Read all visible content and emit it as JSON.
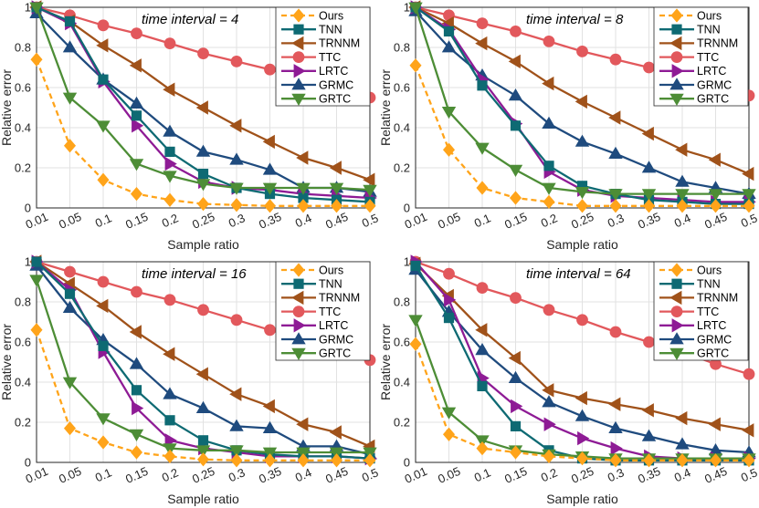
{
  "figure": {
    "xlabel": "Sample ratio",
    "ylabel": "Relative error",
    "categories": [
      "0.01",
      "0.05",
      "0.1",
      "0.15",
      "0.2",
      "0.25",
      "0.3",
      "0.35",
      "0.4",
      "0.45",
      "0.5"
    ],
    "yticks": [
      "0",
      "0.2",
      "0.4",
      "0.6",
      "0.8",
      "1"
    ],
    "legend_entries": [
      "Ours",
      "TNN",
      "TRNNM",
      "TTC",
      "LRTC",
      "GRMC",
      "GRTC"
    ]
  },
  "styles": {
    "Ours": {
      "color": "#FFA41A",
      "marker": "diamond",
      "dash": true
    },
    "TNN": {
      "color": "#0E6A73",
      "marker": "square",
      "dash": false
    },
    "TRNNM": {
      "color": "#A0521A",
      "marker": "tri-left",
      "dash": false
    },
    "TTC": {
      "color": "#E2585C",
      "marker": "circle",
      "dash": false
    },
    "LRTC": {
      "color": "#8E1B95",
      "marker": "tri-right",
      "dash": false
    },
    "GRMC": {
      "color": "#1F4B7E",
      "marker": "tri-up",
      "dash": false
    },
    "GRTC": {
      "color": "#4D8D36",
      "marker": "tri-down",
      "dash": false
    }
  },
  "chart_data": [
    {
      "type": "line",
      "title": "time interval = 4",
      "xlabel": "Sample ratio",
      "ylabel": "Relative error",
      "categories": [
        "0.01",
        "0.05",
        "0.1",
        "0.15",
        "0.2",
        "0.25",
        "0.3",
        "0.35",
        "0.4",
        "0.45",
        "0.5"
      ],
      "ylim": [
        0,
        1
      ],
      "series": [
        {
          "name": "Ours",
          "values": [
            0.74,
            0.31,
            0.14,
            0.07,
            0.04,
            0.02,
            0.015,
            0.01,
            0.01,
            0.01,
            0.01
          ]
        },
        {
          "name": "TNN",
          "values": [
            1.0,
            0.93,
            0.64,
            0.46,
            0.28,
            0.17,
            0.1,
            0.07,
            0.05,
            0.04,
            0.03
          ]
        },
        {
          "name": "TRNNM",
          "values": [
            1.0,
            0.93,
            0.81,
            0.71,
            0.59,
            0.5,
            0.41,
            0.33,
            0.25,
            0.2,
            0.14
          ]
        },
        {
          "name": "TTC",
          "values": [
            1.0,
            0.96,
            0.91,
            0.87,
            0.82,
            0.77,
            0.73,
            0.69,
            0.64,
            0.59,
            0.55
          ]
        },
        {
          "name": "LRTC",
          "values": [
            1.0,
            0.92,
            0.63,
            0.41,
            0.22,
            0.13,
            0.1,
            0.09,
            0.07,
            0.06,
            0.05
          ]
        },
        {
          "name": "GRMC",
          "values": [
            0.97,
            0.8,
            0.64,
            0.52,
            0.38,
            0.28,
            0.24,
            0.19,
            0.1,
            0.1,
            0.08
          ]
        },
        {
          "name": "GRTC",
          "values": [
            1.0,
            0.55,
            0.41,
            0.22,
            0.16,
            0.12,
            0.1,
            0.1,
            0.1,
            0.1,
            0.09
          ]
        }
      ]
    },
    {
      "type": "line",
      "title": "time interval = 8",
      "xlabel": "Sample ratio",
      "ylabel": "Relative error",
      "categories": [
        "0.01",
        "0.05",
        "0.1",
        "0.15",
        "0.2",
        "0.25",
        "0.3",
        "0.35",
        "0.4",
        "0.45",
        "0.5"
      ],
      "ylim": [
        0,
        1
      ],
      "series": [
        {
          "name": "Ours",
          "values": [
            0.71,
            0.29,
            0.1,
            0.05,
            0.03,
            0.01,
            0.01,
            0.01,
            0.01,
            0.01,
            0.01
          ]
        },
        {
          "name": "TNN",
          "values": [
            1.0,
            0.88,
            0.61,
            0.41,
            0.21,
            0.11,
            0.07,
            0.04,
            0.03,
            0.02,
            0.02
          ]
        },
        {
          "name": "TRNNM",
          "values": [
            1.0,
            0.92,
            0.82,
            0.73,
            0.62,
            0.53,
            0.45,
            0.37,
            0.29,
            0.24,
            0.17
          ]
        },
        {
          "name": "TTC",
          "values": [
            1.0,
            0.96,
            0.92,
            0.88,
            0.83,
            0.78,
            0.74,
            0.7,
            0.66,
            0.61,
            0.56
          ]
        },
        {
          "name": "LRTC",
          "values": [
            1.0,
            0.89,
            0.64,
            0.42,
            0.18,
            0.09,
            0.06,
            0.05,
            0.04,
            0.03,
            0.03
          ]
        },
        {
          "name": "GRMC",
          "values": [
            0.98,
            0.8,
            0.66,
            0.56,
            0.42,
            0.33,
            0.27,
            0.2,
            0.13,
            0.1,
            0.07
          ]
        },
        {
          "name": "GRTC",
          "values": [
            1.0,
            0.48,
            0.3,
            0.19,
            0.1,
            0.08,
            0.07,
            0.07,
            0.07,
            0.07,
            0.07
          ]
        }
      ]
    },
    {
      "type": "line",
      "title": "time interval = 16",
      "xlabel": "Sample ratio",
      "ylabel": "Relative error",
      "categories": [
        "0.01",
        "0.05",
        "0.1",
        "0.15",
        "0.2",
        "0.25",
        "0.3",
        "0.35",
        "0.4",
        "0.45",
        "0.5"
      ],
      "ylim": [
        0,
        1
      ],
      "series": [
        {
          "name": "Ours",
          "values": [
            0.66,
            0.17,
            0.1,
            0.05,
            0.03,
            0.015,
            0.01,
            0.01,
            0.01,
            0.01,
            0.01
          ]
        },
        {
          "name": "TNN",
          "values": [
            1.0,
            0.84,
            0.58,
            0.36,
            0.21,
            0.11,
            0.06,
            0.04,
            0.03,
            0.03,
            0.02
          ]
        },
        {
          "name": "TRNNM",
          "values": [
            1.0,
            0.89,
            0.78,
            0.65,
            0.54,
            0.44,
            0.34,
            0.28,
            0.19,
            0.15,
            0.08
          ]
        },
        {
          "name": "TTC",
          "values": [
            1.0,
            0.95,
            0.9,
            0.85,
            0.81,
            0.76,
            0.71,
            0.66,
            0.61,
            0.56,
            0.51
          ]
        },
        {
          "name": "LRTC",
          "values": [
            1.0,
            0.86,
            0.55,
            0.27,
            0.11,
            0.07,
            0.05,
            0.03,
            0.03,
            0.03,
            0.02
          ]
        },
        {
          "name": "GRMC",
          "values": [
            0.98,
            0.77,
            0.61,
            0.49,
            0.34,
            0.27,
            0.18,
            0.17,
            0.08,
            0.08,
            0.04
          ]
        },
        {
          "name": "GRTC",
          "values": [
            0.91,
            0.4,
            0.22,
            0.14,
            0.07,
            0.06,
            0.06,
            0.05,
            0.05,
            0.05,
            0.05
          ]
        }
      ]
    },
    {
      "type": "line",
      "title": "time interval = 64",
      "xlabel": "Sample ratio",
      "ylabel": "Relative error",
      "categories": [
        "0.01",
        "0.05",
        "0.1",
        "0.15",
        "0.2",
        "0.25",
        "0.3",
        "0.35",
        "0.4",
        "0.45",
        "0.5"
      ],
      "ylim": [
        0,
        1
      ],
      "series": [
        {
          "name": "Ours",
          "values": [
            0.59,
            0.14,
            0.07,
            0.05,
            0.03,
            0.02,
            0.01,
            0.01,
            0.01,
            0.01,
            0.01
          ]
        },
        {
          "name": "TNN",
          "values": [
            0.98,
            0.72,
            0.38,
            0.18,
            0.06,
            0.02,
            0.01,
            0.01,
            0.01,
            0.01,
            0.01
          ]
        },
        {
          "name": "TRNNM",
          "values": [
            0.99,
            0.83,
            0.66,
            0.52,
            0.36,
            0.32,
            0.29,
            0.26,
            0.22,
            0.19,
            0.16
          ]
        },
        {
          "name": "TTC",
          "values": [
            1.0,
            0.94,
            0.87,
            0.82,
            0.76,
            0.71,
            0.65,
            0.6,
            0.55,
            0.49,
            0.44
          ]
        },
        {
          "name": "LRTC",
          "values": [
            1.0,
            0.81,
            0.42,
            0.28,
            0.19,
            0.12,
            0.07,
            0.03,
            0.02,
            0.02,
            0.02
          ]
        },
        {
          "name": "GRMC",
          "values": [
            0.96,
            0.75,
            0.56,
            0.42,
            0.3,
            0.23,
            0.17,
            0.13,
            0.09,
            0.06,
            0.05
          ]
        },
        {
          "name": "GRTC",
          "values": [
            0.71,
            0.25,
            0.11,
            0.06,
            0.04,
            0.03,
            0.02,
            0.02,
            0.02,
            0.02,
            0.02
          ]
        }
      ]
    }
  ]
}
